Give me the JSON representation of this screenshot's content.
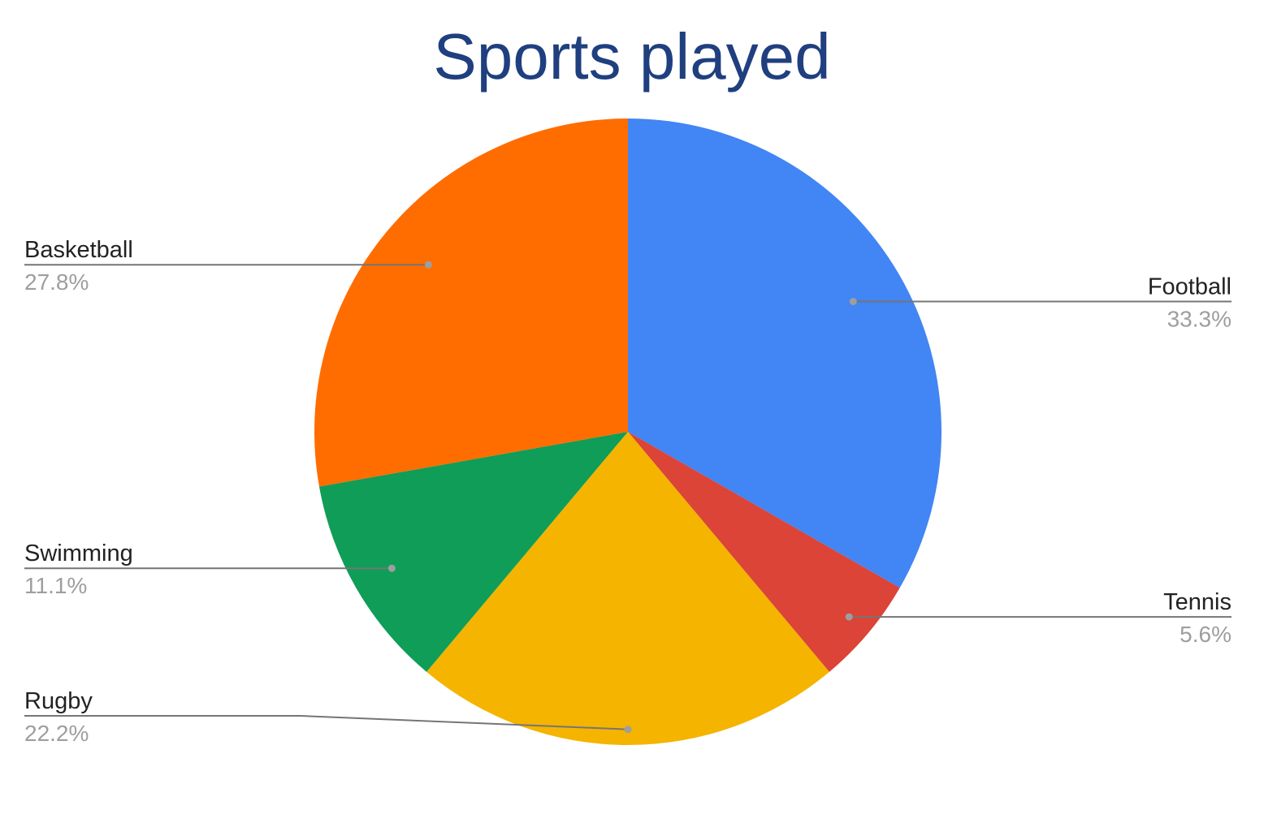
{
  "chart_data": {
    "type": "pie",
    "title": "Sports played",
    "slices": [
      {
        "label": "Football",
        "value": 33.3,
        "value_label": "33.3%",
        "color": "#4285f4"
      },
      {
        "label": "Tennis",
        "value": 5.6,
        "value_label": "5.6%",
        "color": "#db4437"
      },
      {
        "label": "Rugby",
        "value": 22.2,
        "value_label": "22.2%",
        "color": "#f4b400"
      },
      {
        "label": "Swimming",
        "value": 11.1,
        "value_label": "11.1%",
        "color": "#0f9d58"
      },
      {
        "label": "Basketball",
        "value": 27.8,
        "value_label": "27.8%",
        "color": "#ff6d00"
      }
    ],
    "start_angle": "12 o'clock",
    "direction": "clockwise",
    "legend": "none",
    "label_style": "callout labels with leader lines"
  }
}
